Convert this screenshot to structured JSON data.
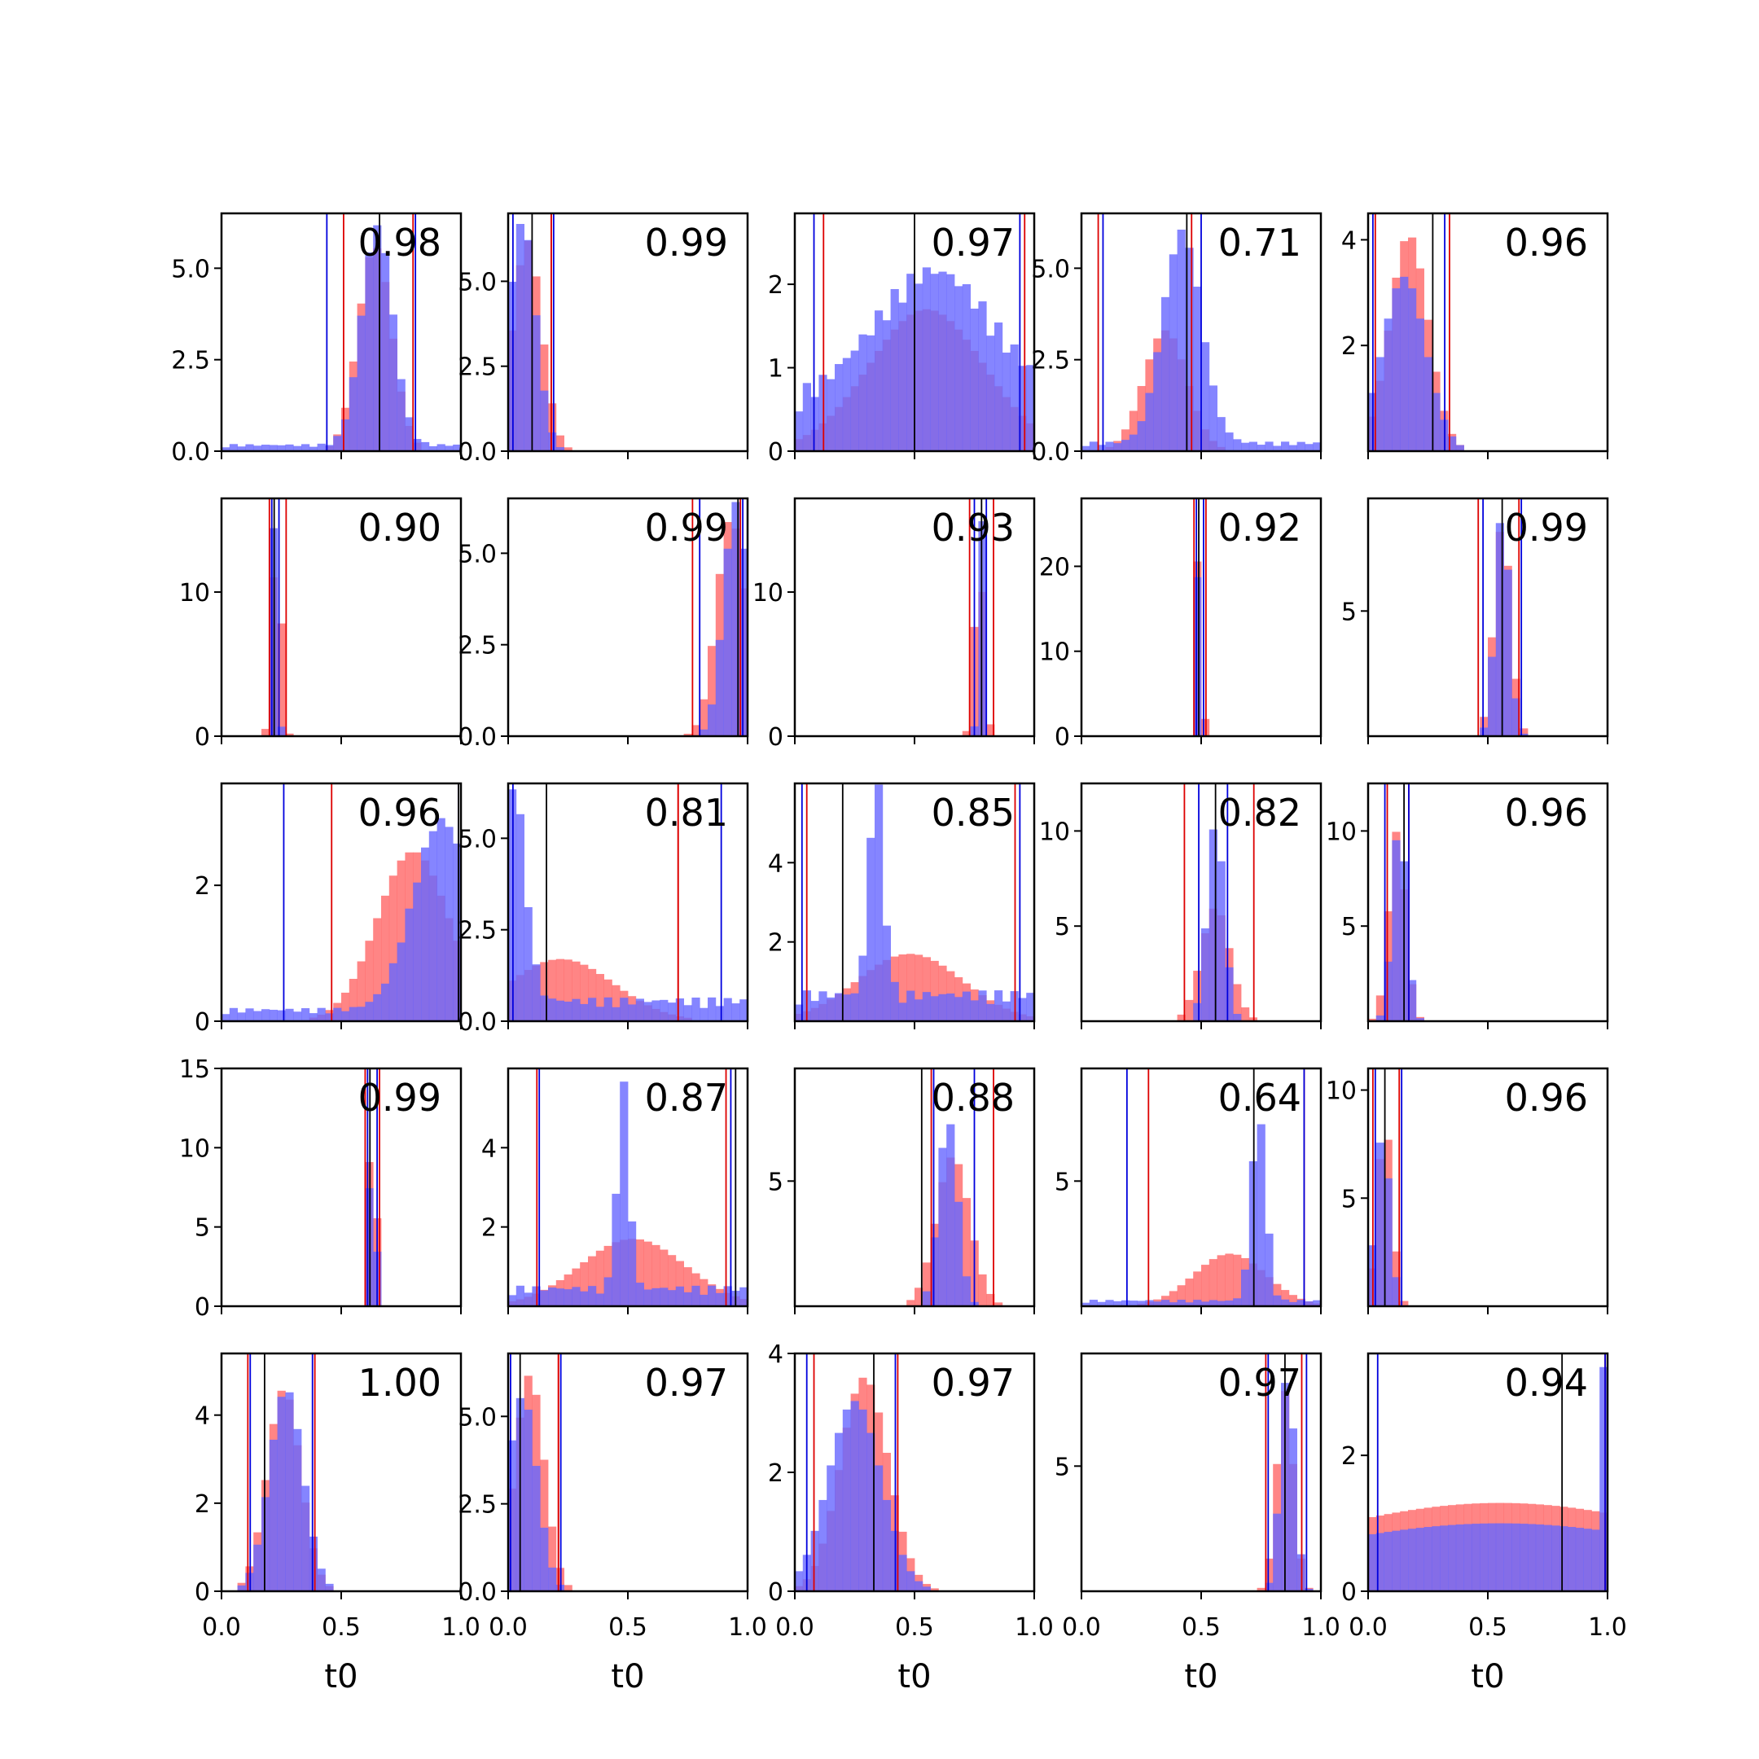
{
  "chart_data": {
    "type": "histogram-grid",
    "rows": 5,
    "cols": 5,
    "xlim": [
      0,
      1
    ],
    "xticks": [
      "0.0",
      "0.5",
      "1.0"
    ],
    "xlabel": "t0",
    "colors": {
      "red": "#ff6666",
      "blue": "#6666ff",
      "red_line": "#dd0000",
      "blue_line": "#0000dd",
      "true_line": "#000000"
    },
    "panels": [
      {
        "score": "0.98",
        "ymax": 6.5,
        "yticks": [
          "0.0",
          "2.5",
          "5.0"
        ],
        "ytick_values": [
          0,
          2.5,
          5
        ],
        "truth": 0.66,
        "red_ci": [
          0.51,
          0.8
        ],
        "blue_ci": [
          0.44,
          0.81
        ],
        "red": {
          "mu": 0.64,
          "sd": 0.07,
          "peak": 5.6
        },
        "blue": {
          "mu": 0.65,
          "sd": 0.065,
          "peak": 6.0,
          "base": 0.15
        }
      },
      {
        "score": "0.99",
        "ymax": 7.0,
        "yticks": [
          "0.0",
          "2.5",
          "5.0"
        ],
        "ytick_values": [
          0,
          2.5,
          5
        ],
        "truth": 0.1,
        "red_ci": [
          0.18,
          0.18
        ],
        "blue_ci": [
          0.02,
          0.19
        ],
        "red": {
          "mu": 0.08,
          "sd": 0.06,
          "peak": 6.2
        },
        "blue": {
          "mu": 0.06,
          "sd": 0.055,
          "peak": 6.8
        }
      },
      {
        "score": "0.97",
        "ymax": 2.85,
        "yticks": [
          "0",
          "1",
          "2"
        ],
        "ytick_values": [
          0,
          1,
          2
        ],
        "truth": 0.5,
        "red_ci": [
          0.12,
          0.96
        ],
        "blue_ci": [
          0.08,
          0.94
        ],
        "red": {
          "mu": 0.55,
          "sd": 0.24,
          "peak": 1.7
        },
        "blue": {
          "mu": 0.58,
          "sd": 0.25,
          "peak": 1.6,
          "base": 0.5
        }
      },
      {
        "score": "0.71",
        "ymax": 6.5,
        "yticks": [
          "0.0",
          "2.5",
          "5.0"
        ],
        "ytick_values": [
          0,
          2.5,
          5
        ],
        "truth": 0.44,
        "red_ci": [
          0.07,
          0.46
        ],
        "blue_ci": [
          0.09,
          0.5
        ],
        "red": {
          "mu": 0.35,
          "sd": 0.09,
          "peak": 3.3
        },
        "blue": {
          "mu": 0.42,
          "sd": 0.08,
          "peak": 5.8,
          "base": 0.2
        }
      },
      {
        "score": "0.96",
        "ymax": 4.5,
        "yticks": [
          "2",
          "4"
        ],
        "ytick_values": [
          2,
          4
        ],
        "truth": 0.27,
        "red_ci": [
          0.03,
          0.34
        ],
        "blue_ci": [
          0.02,
          0.32
        ],
        "red": {
          "mu": 0.17,
          "sd": 0.08,
          "peak": 4.1
        },
        "blue": {
          "mu": 0.15,
          "sd": 0.09,
          "peak": 3.3
        }
      },
      {
        "score": "0.90",
        "ymax": 16.5,
        "yticks": [
          "0",
          "10"
        ],
        "ytick_values": [
          0,
          10
        ],
        "truth": 0.22,
        "red_ci": [
          0.2,
          0.27
        ],
        "blue_ci": [
          0.21,
          0.24
        ],
        "red": {
          "mu": 0.23,
          "sd": 0.018,
          "peak": 14.5
        },
        "blue": {
          "mu": 0.22,
          "sd": 0.012,
          "peak": 15.0
        }
      },
      {
        "score": "0.99",
        "ymax": 6.5,
        "yticks": [
          "0.0",
          "2.5",
          "5.0"
        ],
        "ytick_values": [
          0,
          2.5,
          5
        ],
        "truth": 0.96,
        "red_ci": [
          0.77,
          0.97
        ],
        "blue_ci": [
          0.8,
          0.98
        ],
        "red": {
          "mu": 0.93,
          "sd": 0.06,
          "peak": 6.0
        },
        "blue": {
          "mu": 0.95,
          "sd": 0.05,
          "peak": 6.4
        }
      },
      {
        "score": "0.93",
        "ymax": 16.5,
        "yticks": [
          "0",
          "10"
        ],
        "ytick_values": [
          0,
          10
        ],
        "truth": 0.78,
        "red_ci": [
          0.73,
          0.83
        ],
        "blue_ci": [
          0.75,
          0.8
        ],
        "red": {
          "mu": 0.77,
          "sd": 0.02,
          "peak": 12.5
        },
        "blue": {
          "mu": 0.78,
          "sd": 0.012,
          "peak": 15.5
        }
      },
      {
        "score": "0.92",
        "ymax": 28.0,
        "yticks": [
          "0",
          "10",
          "20"
        ],
        "ytick_values": [
          0,
          10,
          20
        ],
        "truth": 0.49,
        "red_ci": [
          0.47,
          0.52
        ],
        "blue_ci": [
          0.48,
          0.51
        ],
        "red": {
          "mu": 0.49,
          "sd": 0.012,
          "peak": 24.0
        },
        "blue": {
          "mu": 0.49,
          "sd": 0.008,
          "peak": 26.5
        }
      },
      {
        "score": "0.99",
        "ymax": 9.5,
        "yticks": [
          "5"
        ],
        "ytick_values": [
          5
        ],
        "truth": 0.56,
        "red_ci": [
          0.46,
          0.63
        ],
        "blue_ci": [
          0.48,
          0.64
        ],
        "red": {
          "mu": 0.56,
          "sd": 0.035,
          "peak": 8.5
        },
        "blue": {
          "mu": 0.56,
          "sd": 0.03,
          "peak": 9.0
        }
      },
      {
        "score": "0.96",
        "ymax": 3.5,
        "yticks": [
          "0",
          "2"
        ],
        "ytick_values": [
          0,
          2
        ],
        "truth": 0.99,
        "red_ci": [
          0.46,
          0.99
        ],
        "blue_ci": [
          0.26,
          0.99
        ],
        "red": {
          "mu": 0.8,
          "sd": 0.15,
          "peak": 2.5
        },
        "blue": {
          "mu": 0.92,
          "sd": 0.12,
          "peak": 2.8,
          "base": 0.15
        }
      },
      {
        "score": "0.81",
        "ymax": 6.5,
        "yticks": [
          "0.0",
          "2.5",
          "5.0"
        ],
        "ytick_values": [
          0,
          2.5,
          5
        ],
        "truth": 0.16,
        "red_ci": [
          0.71,
          0.71
        ],
        "blue_ci": [
          0.02,
          0.89
        ],
        "red": {
          "mu": 0.22,
          "sd": 0.22,
          "peak": 1.7
        },
        "blue": {
          "mu": 0.02,
          "sd": 0.05,
          "peak": 6.0,
          "base": 0.5
        }
      },
      {
        "score": "0.85",
        "ymax": 6.0,
        "yticks": [
          "2",
          "4"
        ],
        "ytick_values": [
          2,
          4
        ],
        "truth": 0.2,
        "red_ci": [
          0.05,
          0.92
        ],
        "blue_ci": [
          0.03,
          0.94
        ],
        "red": {
          "mu": 0.48,
          "sd": 0.22,
          "peak": 1.7
        },
        "blue": {
          "mu": 0.34,
          "sd": 0.03,
          "peak": 5.5,
          "base": 0.6
        }
      },
      {
        "score": "0.82",
        "ymax": 12.5,
        "yticks": [
          "5",
          "10"
        ],
        "ytick_values": [
          5,
          10
        ],
        "truth": 0.56,
        "red_ci": [
          0.43,
          0.72
        ],
        "blue_ci": [
          0.49,
          0.61
        ],
        "red": {
          "mu": 0.56,
          "sd": 0.06,
          "peak": 6.0
        },
        "blue": {
          "mu": 0.56,
          "sd": 0.035,
          "peak": 10.5
        }
      },
      {
        "score": "0.96",
        "ymax": 12.5,
        "yticks": [
          "5",
          "10"
        ],
        "ytick_values": [
          5,
          10
        ],
        "truth": 0.15,
        "red_ci": [
          0.08,
          0.17
        ],
        "blue_ci": [
          0.07,
          0.17
        ],
        "red": {
          "mu": 0.12,
          "sd": 0.035,
          "peak": 10.0
        },
        "blue": {
          "mu": 0.13,
          "sd": 0.03,
          "peak": 10.5
        }
      },
      {
        "score": "0.99",
        "ymax": 15.0,
        "yticks": [
          "0",
          "5",
          "10",
          "15"
        ],
        "ytick_values": [
          0,
          5,
          10,
          15
        ],
        "truth": 0.62,
        "red_ci": [
          0.6,
          0.66
        ],
        "blue_ci": [
          0.61,
          0.65
        ],
        "red": {
          "mu": 0.63,
          "sd": 0.015,
          "peak": 13.5
        },
        "blue": {
          "mu": 0.63,
          "sd": 0.012,
          "peak": 13.8
        }
      },
      {
        "score": "0.87",
        "ymax": 6.0,
        "yticks": [
          "2",
          "4"
        ],
        "ytick_values": [
          2,
          4
        ],
        "truth": 0.95,
        "red_ci": [
          0.12,
          0.91
        ],
        "blue_ci": [
          0.13,
          0.93
        ],
        "red": {
          "mu": 0.52,
          "sd": 0.22,
          "peak": 1.7
        },
        "blue": {
          "mu": 0.48,
          "sd": 0.025,
          "peak": 5.2,
          "base": 0.4
        }
      },
      {
        "score": "0.88",
        "ymax": 9.5,
        "yticks": [
          "5"
        ],
        "ytick_values": [
          5
        ],
        "truth": 0.53,
        "red_ci": [
          0.57,
          0.83
        ],
        "blue_ci": [
          0.58,
          0.75
        ],
        "red": {
          "mu": 0.66,
          "sd": 0.07,
          "peak": 6.0
        },
        "blue": {
          "mu": 0.64,
          "sd": 0.04,
          "peak": 7.5
        }
      },
      {
        "score": "0.64",
        "ymax": 9.5,
        "yticks": [
          "5"
        ],
        "ytick_values": [
          5
        ],
        "truth": 0.72,
        "red_ci": [
          0.28,
          0.93
        ],
        "blue_ci": [
          0.19,
          0.93
        ],
        "red": {
          "mu": 0.62,
          "sd": 0.15,
          "peak": 2.1
        },
        "blue": {
          "mu": 0.74,
          "sd": 0.03,
          "peak": 7.5,
          "base": 0.2
        }
      },
      {
        "score": "0.96",
        "ymax": 11.0,
        "yticks": [
          "5",
          "10"
        ],
        "ytick_values": [
          5,
          10
        ],
        "truth": 0.07,
        "red_ci": [
          0.02,
          0.13
        ],
        "blue_ci": [
          0.03,
          0.14
        ],
        "red": {
          "mu": 0.07,
          "sd": 0.03,
          "peak": 8.5
        },
        "blue": {
          "mu": 0.06,
          "sd": 0.03,
          "peak": 8.0
        }
      },
      {
        "score": "1.00",
        "ymax": 5.4,
        "yticks": [
          "0",
          "2",
          "4"
        ],
        "ytick_values": [
          0,
          2,
          4
        ],
        "truth": 0.18,
        "red_ci": [
          0.11,
          0.39
        ],
        "blue_ci": [
          0.12,
          0.38
        ],
        "red": {
          "mu": 0.26,
          "sd": 0.07,
          "peak": 4.6
        },
        "blue": {
          "mu": 0.27,
          "sd": 0.07,
          "peak": 4.6
        }
      },
      {
        "score": "0.97",
        "ymax": 6.8,
        "yticks": [
          "0.0",
          "2.5",
          "5.0"
        ],
        "ytick_values": [
          0,
          2.5,
          5
        ],
        "truth": 0.05,
        "red_ci": [
          0.21,
          0.21
        ],
        "blue_ci": [
          0.01,
          0.22
        ],
        "red": {
          "mu": 0.09,
          "sd": 0.06,
          "peak": 6.2
        },
        "blue": {
          "mu": 0.06,
          "sd": 0.06,
          "peak": 5.6
        }
      },
      {
        "score": "0.97",
        "ymax": 4.0,
        "yticks": [
          "0",
          "2",
          "4"
        ],
        "ytick_values": [
          0,
          2,
          4
        ],
        "truth": 0.33,
        "red_ci": [
          0.08,
          0.43
        ],
        "blue_ci": [
          0.05,
          0.42
        ],
        "red": {
          "mu": 0.29,
          "sd": 0.1,
          "peak": 3.6
        },
        "blue": {
          "mu": 0.25,
          "sd": 0.11,
          "peak": 3.2
        }
      },
      {
        "score": "0.97",
        "ymax": 9.5,
        "yticks": [
          "5"
        ],
        "ytick_values": [
          5
        ],
        "truth": 0.85,
        "red_ci": [
          0.77,
          0.92
        ],
        "blue_ci": [
          0.78,
          0.94
        ],
        "red": {
          "mu": 0.85,
          "sd": 0.035,
          "peak": 8.0
        },
        "blue": {
          "mu": 0.86,
          "sd": 0.03,
          "peak": 8.8
        }
      },
      {
        "score": "0.94",
        "ymax": 3.5,
        "yticks": [
          "0",
          "2"
        ],
        "ytick_values": [
          0,
          2
        ],
        "truth": 0.81,
        "red_ci": [
          0.99,
          0.99
        ],
        "blue_ci": [
          0.04,
          0.99
        ],
        "red": {
          "mu": 0.55,
          "sd": 0.9,
          "peak": 1.3
        },
        "blue": {
          "mu": 0.55,
          "sd": 0.9,
          "peak": 1.0,
          "edge": 3.3
        }
      }
    ]
  }
}
